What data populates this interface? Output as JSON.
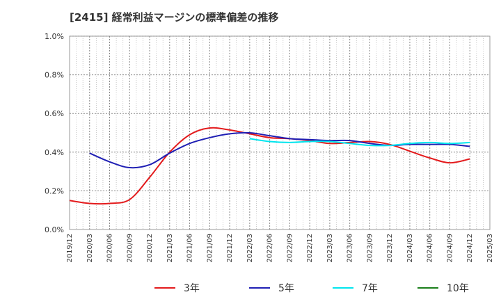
{
  "chart_data": {
    "type": "line",
    "title": "[2415]  経常利益マージンの標準偏差の推移",
    "xlabel": "",
    "ylabel": "",
    "ylim": [
      0,
      1.0
    ],
    "y_ticks": [
      "0.0%",
      "0.2%",
      "0.4%",
      "0.6%",
      "0.8%",
      "1.0%"
    ],
    "y_tick_values": [
      0,
      0.2,
      0.4,
      0.6,
      0.8,
      1.0
    ],
    "categories": [
      "2019/12",
      "2020/03",
      "2020/06",
      "2020/09",
      "2020/12",
      "2021/03",
      "2021/06",
      "2021/09",
      "2021/12",
      "2022/03",
      "2022/06",
      "2022/09",
      "2022/12",
      "2023/03",
      "2023/06",
      "2023/09",
      "2023/12",
      "2024/03",
      "2024/06",
      "2024/09",
      "2024/12",
      "2025/03"
    ],
    "grid": true,
    "legend_position": "bottom",
    "series": [
      {
        "name": "3年",
        "color": "#e31a1c",
        "values": [
          0.15,
          0.135,
          0.135,
          0.155,
          0.27,
          0.4,
          0.49,
          0.525,
          0.515,
          0.495,
          0.475,
          0.47,
          0.46,
          0.445,
          0.45,
          0.455,
          0.44,
          0.405,
          0.37,
          0.345,
          0.365,
          null
        ]
      },
      {
        "name": "5年",
        "color": "#1f1fb4",
        "values": [
          null,
          0.395,
          0.35,
          0.32,
          0.335,
          0.395,
          0.445,
          0.475,
          0.495,
          0.5,
          0.485,
          0.47,
          0.465,
          0.46,
          0.46,
          0.445,
          0.435,
          0.44,
          0.44,
          0.44,
          0.43,
          null
        ]
      },
      {
        "name": "7年",
        "color": "#00e5ee",
        "values": [
          null,
          null,
          null,
          null,
          null,
          null,
          null,
          null,
          null,
          0.47,
          0.455,
          0.45,
          0.455,
          0.455,
          0.445,
          0.435,
          0.435,
          0.445,
          0.45,
          0.445,
          0.45,
          null
        ]
      },
      {
        "name": "10年",
        "color": "#1a7f1a",
        "values": [
          null,
          null,
          null,
          null,
          null,
          null,
          null,
          null,
          null,
          null,
          null,
          null,
          null,
          null,
          null,
          null,
          null,
          null,
          null,
          null,
          null,
          null
        ]
      }
    ]
  }
}
